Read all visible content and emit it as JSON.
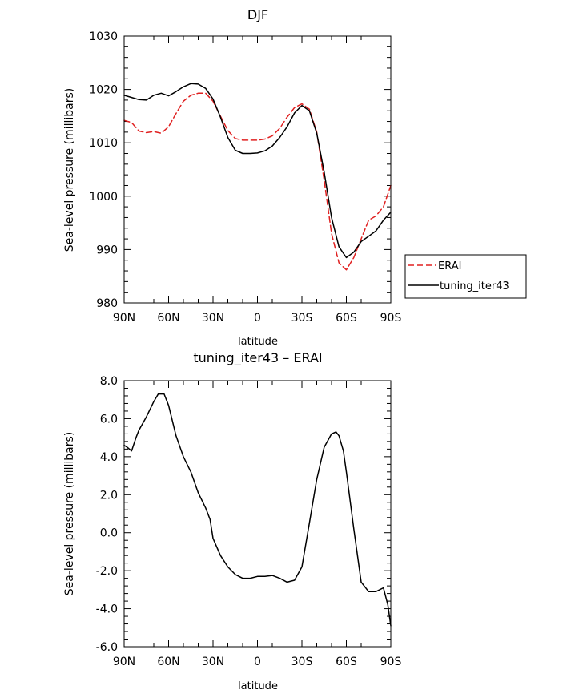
{
  "chart_data": [
    {
      "type": "line",
      "title": "DJF",
      "xlabel": "latitude",
      "ylabel": "Sea-level pressure (millibars)",
      "xlim": [
        90,
        -90
      ],
      "ylim": [
        980,
        1030
      ],
      "x_ticks": [
        90,
        60,
        30,
        0,
        -30,
        -60,
        -90
      ],
      "x_tick_labels": [
        "90N",
        "60N",
        "30N",
        "0",
        "30S",
        "60S",
        "90S"
      ],
      "y_ticks": [
        980,
        990,
        1000,
        1010,
        1020,
        1030
      ],
      "y_tick_labels": [
        "980",
        "990",
        "1000",
        "1010",
        "1020",
        "1030"
      ],
      "legend": {
        "placement": "outside-right"
      },
      "series": [
        {
          "name": "ERAI",
          "color": "#e02020",
          "style": "dashed",
          "x": [
            90,
            85,
            80,
            75,
            70,
            65,
            60,
            55,
            50,
            45,
            40,
            35,
            30,
            25,
            20,
            15,
            10,
            5,
            0,
            -5,
            -10,
            -15,
            -20,
            -25,
            -30,
            -35,
            -40,
            -45,
            -50,
            -55,
            -60,
            -65,
            -70,
            -75,
            -80,
            -85,
            -90
          ],
          "values": [
            1014.2,
            1013.8,
            1012.2,
            1011.9,
            1012.1,
            1011.8,
            1013.0,
            1015.5,
            1017.8,
            1018.9,
            1019.3,
            1019.3,
            1017.8,
            1015.0,
            1012.3,
            1010.8,
            1010.5,
            1010.5,
            1010.5,
            1010.7,
            1011.3,
            1012.7,
            1014.8,
            1016.6,
            1017.3,
            1016.3,
            1012.0,
            1003.0,
            993.0,
            987.5,
            986.2,
            988.5,
            992.0,
            995.5,
            996.3,
            998.0,
            1002.0
          ]
        },
        {
          "name": "tuning_iter43",
          "color": "#000000",
          "style": "solid",
          "x": [
            90,
            85,
            80,
            75,
            70,
            65,
            60,
            55,
            50,
            45,
            40,
            35,
            30,
            25,
            20,
            15,
            10,
            5,
            0,
            -5,
            -10,
            -15,
            -20,
            -25,
            -30,
            -35,
            -40,
            -45,
            -50,
            -55,
            -60,
            -65,
            -70,
            -75,
            -80,
            -85,
            -90
          ],
          "values": [
            1018.9,
            1018.5,
            1018.1,
            1018.0,
            1018.9,
            1019.3,
            1018.8,
            1019.6,
            1020.5,
            1021.1,
            1021.0,
            1020.2,
            1018.2,
            1014.8,
            1011.0,
            1008.6,
            1008.0,
            1008.0,
            1008.1,
            1008.5,
            1009.4,
            1011.0,
            1013.0,
            1015.6,
            1017.0,
            1016.0,
            1011.8,
            1004.5,
            996.0,
            990.5,
            988.5,
            989.5,
            991.5,
            992.5,
            993.5,
            995.5,
            997.0
          ]
        }
      ]
    },
    {
      "type": "line",
      "title": "tuning_iter43 – ERAI",
      "xlabel": "latitude",
      "ylabel": "Sea-level pressure (millibars)",
      "xlim": [
        90,
        -90
      ],
      "ylim": [
        -6,
        8
      ],
      "x_ticks": [
        90,
        60,
        30,
        0,
        -30,
        -60,
        -90
      ],
      "x_tick_labels": [
        "90N",
        "60N",
        "30N",
        "0",
        "30S",
        "60S",
        "90S"
      ],
      "y_ticks": [
        -6,
        -4,
        -2,
        0,
        2,
        4,
        6,
        8
      ],
      "y_tick_labels": [
        "-6.0",
        "-4.0",
        "-2.0",
        "0.0",
        "2.0",
        "4.0",
        "6.0",
        "8.0"
      ],
      "series": [
        {
          "color": "#000000",
          "style": "solid",
          "x": [
            90,
            88,
            85,
            82,
            80,
            75,
            70,
            67,
            65,
            63,
            60,
            55,
            50,
            45,
            40,
            35,
            32,
            30,
            25,
            20,
            15,
            10,
            5,
            0,
            -5,
            -10,
            -15,
            -20,
            -25,
            -30,
            -35,
            -40,
            -45,
            -50,
            -53,
            -55,
            -58,
            -60,
            -65,
            -70,
            -75,
            -80,
            -85,
            -88,
            -90
          ],
          "values": [
            4.6,
            4.5,
            4.3,
            5.0,
            5.4,
            6.1,
            6.9,
            7.3,
            7.3,
            7.3,
            6.7,
            5.1,
            4.0,
            3.2,
            2.1,
            1.3,
            0.7,
            -0.3,
            -1.2,
            -1.8,
            -2.2,
            -2.4,
            -2.4,
            -2.3,
            -2.3,
            -2.25,
            -2.4,
            -2.6,
            -2.5,
            -1.8,
            0.5,
            2.8,
            4.5,
            5.2,
            5.3,
            5.1,
            4.3,
            3.2,
            0.2,
            -2.6,
            -3.1,
            -3.1,
            -2.9,
            -3.8,
            -4.9
          ]
        }
      ]
    }
  ]
}
